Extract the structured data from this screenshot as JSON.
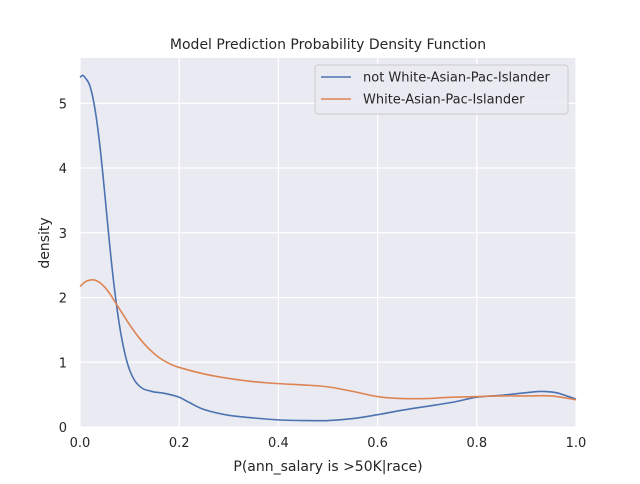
{
  "chart_data": {
    "type": "line",
    "title": "Model Prediction Probability Density Function",
    "xlabel": "P(ann_salary is >50K|race)",
    "ylabel": "density",
    "xlim": [
      0,
      1
    ],
    "ylim": [
      0,
      5.7
    ],
    "xticks": [
      0.0,
      0.2,
      0.4,
      0.6,
      0.8,
      1.0
    ],
    "xtick_labels": [
      "0.0",
      "0.2",
      "0.4",
      "0.6",
      "0.8",
      "1.0"
    ],
    "yticks": [
      0,
      1,
      2,
      3,
      4,
      5
    ],
    "ytick_labels": [
      "0",
      "1",
      "2",
      "3",
      "4",
      "5"
    ],
    "grid": true,
    "legend_position": "top-right",
    "background_color": "#eaeaf2",
    "series": [
      {
        "name": "not White-Asian-Pac-Islander",
        "color": "#4c72b0",
        "x": [
          0.0,
          0.005,
          0.01,
          0.02,
          0.03,
          0.04,
          0.05,
          0.06,
          0.07,
          0.08,
          0.09,
          0.1,
          0.11,
          0.12,
          0.13,
          0.14,
          0.15,
          0.17,
          0.2,
          0.22,
          0.25,
          0.3,
          0.35,
          0.4,
          0.45,
          0.5,
          0.55,
          0.6,
          0.65,
          0.7,
          0.75,
          0.8,
          0.85,
          0.9,
          0.93,
          0.96,
          1.0
        ],
        "y": [
          5.4,
          5.43,
          5.4,
          5.27,
          4.92,
          4.35,
          3.6,
          2.8,
          2.1,
          1.55,
          1.15,
          0.88,
          0.72,
          0.63,
          0.58,
          0.56,
          0.54,
          0.52,
          0.46,
          0.38,
          0.27,
          0.18,
          0.14,
          0.11,
          0.1,
          0.1,
          0.13,
          0.19,
          0.26,
          0.32,
          0.38,
          0.46,
          0.49,
          0.53,
          0.55,
          0.53,
          0.43
        ]
      },
      {
        "name": "White-Asian-Pac-Islander",
        "color": "#dd8452",
        "x": [
          0.0,
          0.01,
          0.02,
          0.03,
          0.04,
          0.05,
          0.06,
          0.07,
          0.08,
          0.1,
          0.12,
          0.14,
          0.16,
          0.18,
          0.2,
          0.25,
          0.3,
          0.35,
          0.4,
          0.45,
          0.5,
          0.55,
          0.6,
          0.65,
          0.7,
          0.75,
          0.8,
          0.85,
          0.9,
          0.95,
          1.0
        ],
        "y": [
          2.17,
          2.24,
          2.27,
          2.27,
          2.23,
          2.16,
          2.06,
          1.94,
          1.82,
          1.58,
          1.37,
          1.2,
          1.07,
          0.98,
          0.92,
          0.82,
          0.75,
          0.7,
          0.67,
          0.65,
          0.62,
          0.55,
          0.47,
          0.44,
          0.44,
          0.46,
          0.47,
          0.48,
          0.48,
          0.48,
          0.42
        ]
      }
    ]
  }
}
